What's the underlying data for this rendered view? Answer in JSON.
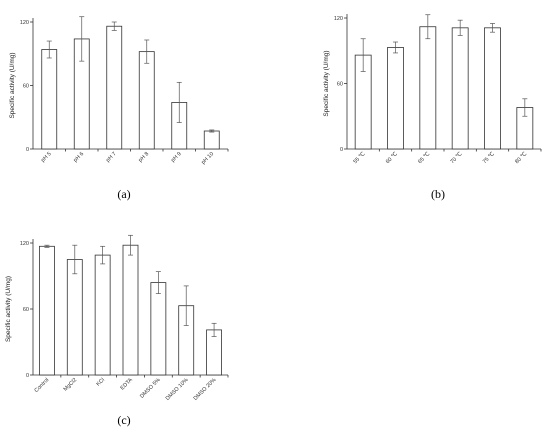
{
  "chart_data": [
    {
      "type": "bar",
      "panel_label": "(a)",
      "ylabel": "Specific activity (U/mg)",
      "xlabel": "",
      "ylim": [
        0,
        120
      ],
      "yticks": [
        0,
        60,
        120
      ],
      "categories": [
        "pH 5",
        "pH 6",
        "pH 7",
        "pH 8",
        "pH 9",
        "pH 10"
      ],
      "values": [
        94,
        104,
        116,
        92,
        44,
        17
      ],
      "errors": [
        8,
        21,
        4,
        11,
        19,
        1
      ]
    },
    {
      "type": "bar",
      "panel_label": "(b)",
      "ylabel": "Specific activity (U/mg)",
      "xlabel": "",
      "ylim": [
        0,
        120
      ],
      "yticks": [
        0,
        60,
        120
      ],
      "categories": [
        "55 ℃",
        "60 ℃",
        "65 ℃",
        "70 ℃",
        "75 ℃",
        "80 ℃"
      ],
      "values": [
        86,
        93,
        112,
        111,
        111,
        38
      ],
      "errors": [
        15,
        5,
        11,
        7,
        4,
        8
      ]
    },
    {
      "type": "bar",
      "panel_label": "(c)",
      "ylabel": "Specific activity (U/mg)",
      "xlabel": "",
      "ylim": [
        0,
        120
      ],
      "yticks": [
        0,
        60,
        120
      ],
      "categories": [
        "Control",
        "MgCl2",
        "KCl",
        "EDTA",
        "DMSO 5%",
        "DMSO 10%",
        "DMSO 20%"
      ],
      "values": [
        117,
        105,
        109,
        118,
        84,
        63,
        41
      ],
      "errors": [
        1,
        13,
        8,
        9,
        10,
        18,
        6
      ]
    }
  ]
}
